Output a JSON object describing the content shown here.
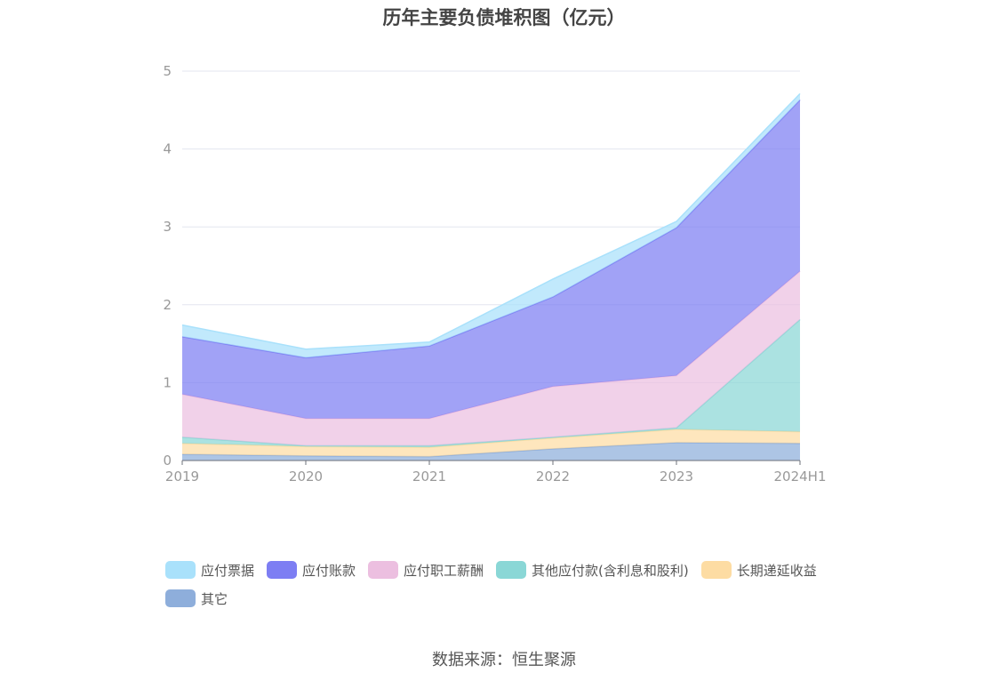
{
  "title": "历年主要负债堆积图（亿元）",
  "source": "数据来源：恒生聚源",
  "chart_data": {
    "type": "area",
    "stacked": true,
    "title": "历年主要负债堆积图（亿元）",
    "categories": [
      "2019",
      "2020",
      "2021",
      "2022",
      "2023",
      "2024H1"
    ],
    "ylim": [
      0,
      5
    ],
    "yticks": [
      "0",
      "1",
      "2",
      "3",
      "4",
      "5"
    ],
    "grid": true,
    "legend_position": "bottom",
    "series": [
      {
        "name": "其它",
        "color": "#8eaedb",
        "values": [
          0.08,
          0.06,
          0.05,
          0.15,
          0.23,
          0.22
        ]
      },
      {
        "name": "长期递延收益",
        "color": "#fddca3",
        "values": [
          0.14,
          0.12,
          0.12,
          0.14,
          0.17,
          0.15
        ]
      },
      {
        "name": "其他应付款(含利息和股利)",
        "color": "#8ad7d6",
        "values": [
          0.08,
          0.01,
          0.02,
          0.01,
          0.02,
          1.44
        ]
      },
      {
        "name": "应付职工薪酬",
        "color": "#ecbfe0",
        "values": [
          0.55,
          0.35,
          0.35,
          0.65,
          0.67,
          0.62
        ]
      },
      {
        "name": "应付账款",
        "color": "#7d7ef3",
        "values": [
          0.74,
          0.78,
          0.93,
          1.15,
          1.9,
          2.2
        ]
      },
      {
        "name": "应付票据",
        "color": "#a9e1fb",
        "values": [
          0.15,
          0.11,
          0.05,
          0.23,
          0.08,
          0.08
        ]
      }
    ]
  }
}
